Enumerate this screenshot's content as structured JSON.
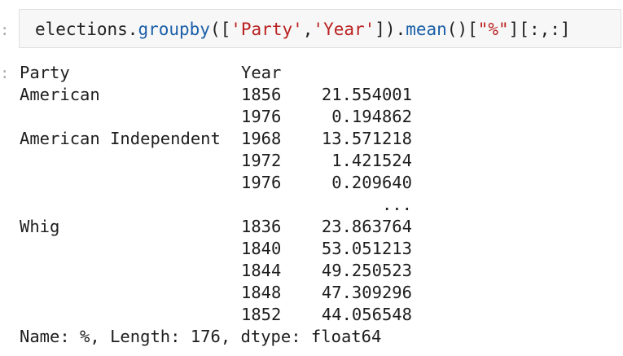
{
  "prompts": {
    "input": ":",
    "output": ":"
  },
  "input": {
    "tokens": [
      {
        "text": "elections.",
        "kind": "op"
      },
      {
        "text": "groupby",
        "kind": "fn"
      },
      {
        "text": "([",
        "kind": "op"
      },
      {
        "text": "'Party'",
        "kind": "str"
      },
      {
        "text": ",",
        "kind": "op"
      },
      {
        "text": "'Year'",
        "kind": "str"
      },
      {
        "text": "]).",
        "kind": "op"
      },
      {
        "text": "mean",
        "kind": "fn"
      },
      {
        "text": "()[",
        "kind": "op"
      },
      {
        "text": "\"%\"",
        "kind": "str"
      },
      {
        "text": "][:,:]",
        "kind": "op"
      }
    ]
  },
  "output": {
    "header": {
      "party": "Party",
      "year": "Year",
      "value": ""
    },
    "rows": [
      {
        "party": "American",
        "year": "1856",
        "value": "21.554001"
      },
      {
        "party": "",
        "year": "1976",
        "value": "0.194862"
      },
      {
        "party": "American Independent",
        "year": "1968",
        "value": "13.571218"
      },
      {
        "party": "",
        "year": "1972",
        "value": "1.421524"
      },
      {
        "party": "",
        "year": "1976",
        "value": "0.209640"
      },
      {
        "party": "",
        "year": "",
        "value": "..."
      },
      {
        "party": "Whig",
        "year": "1836",
        "value": "23.863764"
      },
      {
        "party": "",
        "year": "1840",
        "value": "53.051213"
      },
      {
        "party": "",
        "year": "1844",
        "value": "49.250523"
      },
      {
        "party": "",
        "year": "1848",
        "value": "47.309296"
      },
      {
        "party": "",
        "year": "1852",
        "value": "44.056548"
      }
    ],
    "footer": "Name: %, Length: 176, dtype: float64"
  }
}
